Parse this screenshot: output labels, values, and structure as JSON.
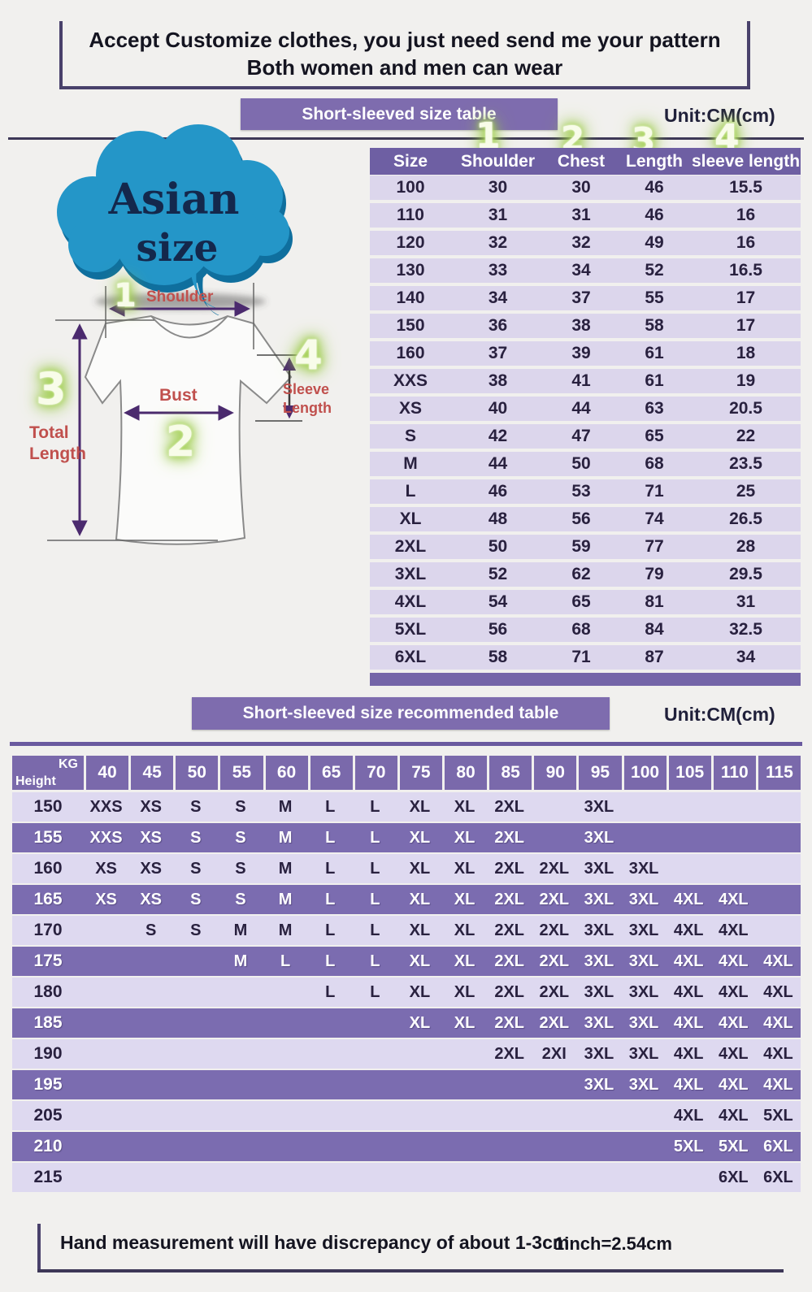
{
  "top_note": {
    "line1": "Accept Customize clothes, you just need send me your pattern",
    "line2": "Both women and men can wear"
  },
  "badge": {
    "line1": "Asian",
    "line2": "size"
  },
  "size_section": {
    "banner": "Short-sleeved size table",
    "unit": "Unit:CM(cm)",
    "markers": [
      "1",
      "2",
      "3",
      "4"
    ],
    "table": {
      "columns": [
        "Size",
        "Shoulder",
        "Chest",
        "Length",
        "sleeve length"
      ],
      "rows": [
        [
          "100",
          "30",
          "30",
          "46",
          "15.5"
        ],
        [
          "110",
          "31",
          "31",
          "46",
          "16"
        ],
        [
          "120",
          "32",
          "32",
          "49",
          "16"
        ],
        [
          "130",
          "33",
          "34",
          "52",
          "16.5"
        ],
        [
          "140",
          "34",
          "37",
          "55",
          "17"
        ],
        [
          "150",
          "36",
          "38",
          "58",
          "17"
        ],
        [
          "160",
          "37",
          "39",
          "61",
          "18"
        ],
        [
          "XXS",
          "38",
          "41",
          "61",
          "19"
        ],
        [
          "XS",
          "40",
          "44",
          "63",
          "20.5"
        ],
        [
          "S",
          "42",
          "47",
          "65",
          "22"
        ],
        [
          "M",
          "44",
          "50",
          "68",
          "23.5"
        ],
        [
          "L",
          "46",
          "53",
          "71",
          "25"
        ],
        [
          "XL",
          "48",
          "56",
          "74",
          "26.5"
        ],
        [
          "2XL",
          "50",
          "59",
          "77",
          "28"
        ],
        [
          "3XL",
          "52",
          "62",
          "79",
          "29.5"
        ],
        [
          "4XL",
          "54",
          "65",
          "81",
          "31"
        ],
        [
          "5XL",
          "56",
          "68",
          "84",
          "32.5"
        ],
        [
          "6XL",
          "58",
          "71",
          "87",
          "34"
        ]
      ]
    }
  },
  "diagram": {
    "shoulder_num": "1",
    "shoulder_label": "Shoulder",
    "bust_num": "2",
    "bust_label": "Bust",
    "total_num": "3",
    "total_label_line1": "Total",
    "total_label_line2": "Length",
    "sleeve_num": "4",
    "sleeve_label_line1": "Sleeve",
    "sleeve_label_line2": "Length"
  },
  "recommend_section": {
    "banner": "Short-sleeved size recommended table",
    "unit": "Unit:CM(cm)",
    "corner_top": "KG",
    "corner_bottom": "Height",
    "weights": [
      "40",
      "45",
      "50",
      "55",
      "60",
      "65",
      "70",
      "75",
      "80",
      "85",
      "90",
      "95",
      "100",
      "105",
      "110",
      "115"
    ],
    "rows": [
      {
        "height": "150",
        "shade": "light",
        "cells": [
          "XXS",
          "XS",
          "S",
          "S",
          "M",
          "L",
          "L",
          "XL",
          "XL",
          "2XL",
          "",
          "3XL",
          "",
          "",
          "",
          ""
        ]
      },
      {
        "height": "155",
        "shade": "dark",
        "cells": [
          "XXS",
          "XS",
          "S",
          "S",
          "M",
          "L",
          "L",
          "XL",
          "XL",
          "2XL",
          "",
          "3XL",
          "",
          "",
          "",
          ""
        ]
      },
      {
        "height": "160",
        "shade": "light",
        "cells": [
          "XS",
          "XS",
          "S",
          "S",
          "M",
          "L",
          "L",
          "XL",
          "XL",
          "2XL",
          "2XL",
          "3XL",
          "3XL",
          "",
          "",
          ""
        ]
      },
      {
        "height": "165",
        "shade": "dark",
        "cells": [
          "XS",
          "XS",
          "S",
          "S",
          "M",
          "L",
          "L",
          "XL",
          "XL",
          "2XL",
          "2XL",
          "3XL",
          "3XL",
          "4XL",
          "4XL",
          ""
        ]
      },
      {
        "height": "170",
        "shade": "light",
        "cells": [
          "",
          "S",
          "S",
          "M",
          "M",
          "L",
          "L",
          "XL",
          "XL",
          "2XL",
          "2XL",
          "3XL",
          "3XL",
          "4XL",
          "4XL",
          ""
        ]
      },
      {
        "height": "175",
        "shade": "dark",
        "cells": [
          "",
          "",
          "",
          "M",
          "L",
          "L",
          "L",
          "XL",
          "XL",
          "2XL",
          "2XL",
          "3XL",
          "3XL",
          "4XL",
          "4XL",
          "4XL"
        ]
      },
      {
        "height": "180",
        "shade": "light",
        "cells": [
          "",
          "",
          "",
          "",
          "",
          "L",
          "L",
          "XL",
          "XL",
          "2XL",
          "2XL",
          "3XL",
          "3XL",
          "4XL",
          "4XL",
          "4XL"
        ]
      },
      {
        "height": "185",
        "shade": "dark",
        "cells": [
          "",
          "",
          "",
          "",
          "",
          "",
          "",
          "XL",
          "XL",
          "2XL",
          "2XL",
          "3XL",
          "3XL",
          "4XL",
          "4XL",
          "4XL"
        ]
      },
      {
        "height": "190",
        "shade": "light",
        "cells": [
          "",
          "",
          "",
          "",
          "",
          "",
          "",
          "",
          "",
          "2XL",
          "2XI",
          "3XL",
          "3XL",
          "4XL",
          "4XL",
          "4XL"
        ]
      },
      {
        "height": "195",
        "shade": "dark",
        "cells": [
          "",
          "",
          "",
          "",
          "",
          "",
          "",
          "",
          "",
          "",
          "",
          "3XL",
          "3XL",
          "4XL",
          "4XL",
          "4XL"
        ]
      },
      {
        "height": "205",
        "shade": "light",
        "cells": [
          "",
          "",
          "",
          "",
          "",
          "",
          "",
          "",
          "",
          "",
          "",
          "",
          "",
          "4XL",
          "4XL",
          "5XL"
        ]
      },
      {
        "height": "210",
        "shade": "dark",
        "cells": [
          "",
          "",
          "",
          "",
          "",
          "",
          "",
          "",
          "",
          "",
          "",
          "",
          "",
          "5XL",
          "5XL",
          "6XL"
        ]
      },
      {
        "height": "215",
        "shade": "light",
        "cells": [
          "",
          "",
          "",
          "",
          "",
          "",
          "",
          "",
          "",
          "",
          "",
          "",
          "",
          "",
          "6XL",
          "6XL"
        ]
      }
    ]
  },
  "footer": {
    "note": "Hand measurement will have discrepancy of about  1-3cm",
    "conversion": "1inch=2.54cm"
  },
  "colors": {
    "banner_purple": "#7e6cae",
    "table_header_purple": "#6e5fa3",
    "row_lavender": "#dcd6ec",
    "rec_row_purple": "#7b6cb0",
    "rec_row_light": "#ded9f0",
    "accent_green": "#9ccb4a",
    "label_red": "#c0504d",
    "cloud_blue": "#2496c8",
    "line_dark": "#3d3757"
  }
}
